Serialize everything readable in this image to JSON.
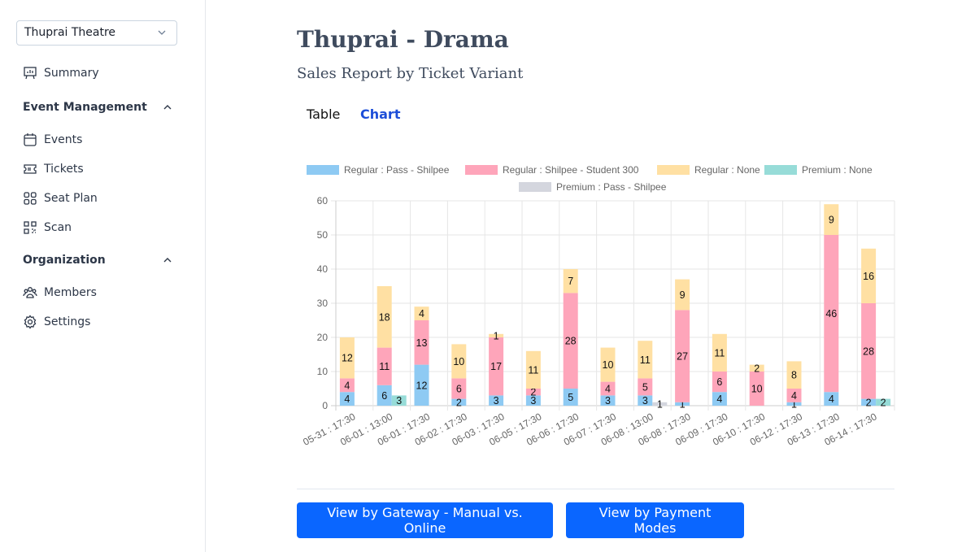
{
  "sidebar": {
    "venue_select": "Thuprai Theatre",
    "summary": "Summary",
    "sections": [
      {
        "label": "Event Management",
        "items": [
          "Events",
          "Tickets",
          "Seat Plan",
          "Scan"
        ]
      },
      {
        "label": "Organization",
        "items": [
          "Members",
          "Settings"
        ]
      }
    ]
  },
  "header": {
    "title": "Thuprai - Drama",
    "subtitle": "Sales Report by Ticket Variant"
  },
  "tabs": [
    {
      "label": "Table",
      "active": false
    },
    {
      "label": "Chart",
      "active": true
    }
  ],
  "accent_color": "#1d4ed8",
  "buttons": {
    "gateway": "View by Gateway - Manual vs. Online",
    "payment_modes": "View by Payment Modes"
  },
  "chart_data": {
    "type": "bar",
    "stacked": true,
    "categories": [
      "05-31 : 17:30",
      "06-01 : 13:00",
      "06-01 : 17:30",
      "06-02 : 17:30",
      "06-03 : 17:30",
      "06-05 : 17:30",
      "06-06 : 17:30",
      "06-07 : 17:30",
      "06-08 : 13:00",
      "06-08 : 17:30",
      "06-09 : 17:30",
      "06-10 : 17:30",
      "06-12 : 17:30",
      "06-13 : 17:30",
      "06-14 : 17:30"
    ],
    "ylim": [
      0,
      60
    ],
    "yticks": [
      0,
      10,
      20,
      30,
      40,
      50,
      60
    ],
    "grid": true,
    "legend_position": "top",
    "series": [
      {
        "name": "Regular : Pass - Shilpee",
        "stack": "Regular",
        "color": "#8ecaf3",
        "values": [
          4,
          6,
          12,
          2,
          3,
          3,
          5,
          3,
          3,
          1,
          4,
          0,
          1,
          4,
          2
        ]
      },
      {
        "name": "Regular : Shilpee - Student 300",
        "stack": "Regular",
        "color": "#fea5ba",
        "values": [
          4,
          11,
          13,
          6,
          17,
          2,
          28,
          4,
          5,
          27,
          6,
          10,
          4,
          46,
          28
        ]
      },
      {
        "name": "Regular : None",
        "stack": "Regular",
        "color": "#ffe0a3",
        "values": [
          12,
          18,
          4,
          10,
          1,
          11,
          7,
          10,
          11,
          9,
          11,
          2,
          8,
          9,
          16
        ]
      },
      {
        "name": "Premium : None",
        "stack": "Premium",
        "color": "#97dcd8",
        "values": [
          0,
          3,
          0,
          0,
          0,
          0,
          0,
          0,
          0,
          0,
          0,
          0,
          0,
          0,
          2
        ]
      },
      {
        "name": "Premium : Pass - Shilpee",
        "stack": "Premium",
        "color": "#d4d6de",
        "values": [
          0,
          0,
          0,
          0,
          0,
          0,
          0,
          0,
          1,
          0,
          0,
          0,
          0,
          0,
          0
        ]
      }
    ]
  }
}
